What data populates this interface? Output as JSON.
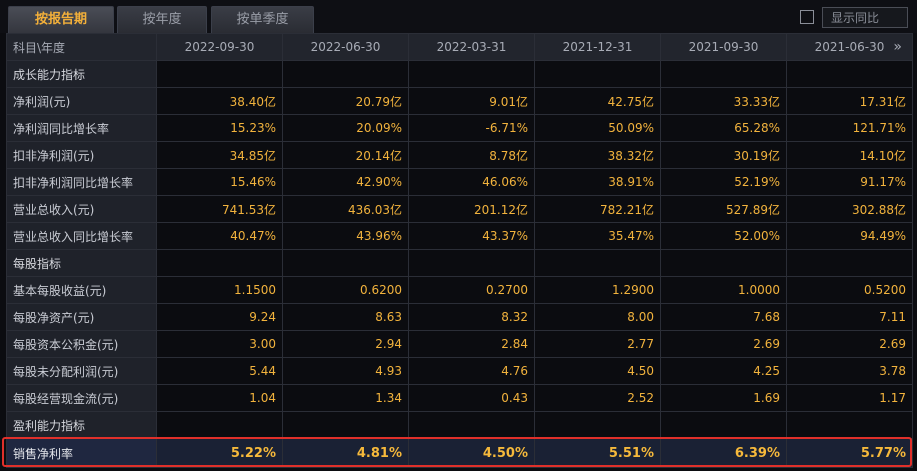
{
  "tabs": [
    {
      "label": "按报告期",
      "active": true
    },
    {
      "label": "按年度",
      "active": false
    },
    {
      "label": "按单季度",
      "active": false
    }
  ],
  "toggle": {
    "label": "显示同比",
    "checked": false
  },
  "table": {
    "header_label": "科目\\年度",
    "periods": [
      "2022-09-30",
      "2022-06-30",
      "2022-03-31",
      "2021-12-31",
      "2021-09-30",
      "2021-06-30"
    ],
    "rows": [
      {
        "type": "section",
        "label": "成长能力指标"
      },
      {
        "type": "data",
        "label": "净利润(元)",
        "values": [
          "38.40亿",
          "20.79亿",
          "9.01亿",
          "42.75亿",
          "33.33亿",
          "17.31亿"
        ]
      },
      {
        "type": "data",
        "label": "净利润同比增长率",
        "values": [
          "15.23%",
          "20.09%",
          "-6.71%",
          "50.09%",
          "65.28%",
          "121.71%"
        ]
      },
      {
        "type": "data",
        "label": "扣非净利润(元)",
        "values": [
          "34.85亿",
          "20.14亿",
          "8.78亿",
          "38.32亿",
          "30.19亿",
          "14.10亿"
        ]
      },
      {
        "type": "data",
        "label": "扣非净利润同比增长率",
        "values": [
          "15.46%",
          "42.90%",
          "46.06%",
          "38.91%",
          "52.19%",
          "91.17%"
        ]
      },
      {
        "type": "data",
        "label": "营业总收入(元)",
        "values": [
          "741.53亿",
          "436.03亿",
          "201.12亿",
          "782.21亿",
          "527.89亿",
          "302.88亿"
        ]
      },
      {
        "type": "data",
        "label": "营业总收入同比增长率",
        "values": [
          "40.47%",
          "43.96%",
          "43.37%",
          "35.47%",
          "52.00%",
          "94.49%"
        ]
      },
      {
        "type": "section",
        "label": "每股指标"
      },
      {
        "type": "data",
        "label": "基本每股收益(元)",
        "values": [
          "1.1500",
          "0.6200",
          "0.2700",
          "1.2900",
          "1.0000",
          "0.5200"
        ]
      },
      {
        "type": "data",
        "label": "每股净资产(元)",
        "values": [
          "9.24",
          "8.63",
          "8.32",
          "8.00",
          "7.68",
          "7.11"
        ]
      },
      {
        "type": "data",
        "label": "每股资本公积金(元)",
        "values": [
          "3.00",
          "2.94",
          "2.84",
          "2.77",
          "2.69",
          "2.69"
        ]
      },
      {
        "type": "data",
        "label": "每股未分配利润(元)",
        "values": [
          "5.44",
          "4.93",
          "4.76",
          "4.50",
          "4.25",
          "3.78"
        ]
      },
      {
        "type": "data",
        "label": "每股经营现金流(元)",
        "values": [
          "1.04",
          "1.34",
          "0.43",
          "2.52",
          "1.69",
          "1.17"
        ]
      },
      {
        "type": "section",
        "label": "盈利能力指标"
      },
      {
        "type": "highlight",
        "label": "销售净利率",
        "values": [
          "5.22%",
          "4.81%",
          "4.50%",
          "5.51%",
          "6.39%",
          "5.77%"
        ]
      }
    ]
  },
  "icons": {
    "more": "double-chevron-right-icon"
  },
  "colors": {
    "accent": "#f2b33d",
    "highlight_border": "#e0302a",
    "background": "#0b0c10"
  }
}
